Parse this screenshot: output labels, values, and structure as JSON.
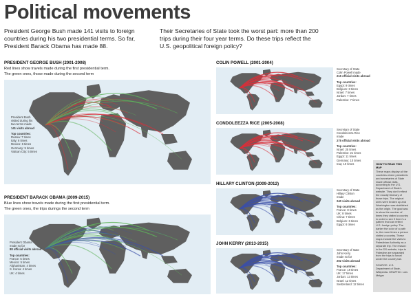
{
  "title": "Political movements",
  "intro_left": "President George Bush made 141 visits to foreign countries during his two presidential terms. So far, President Barack Obama has made 88.",
  "intro_right": "Their Secretaries of State took the worst part: more than 200 trips during their four year terms. Do these trips reflect the U.S. geopolitical foreign policy?",
  "bush": {
    "heading": "PRESIDENT GEORGE BUSH (2001-2008)",
    "desc1": "Red lines show travels made during the first presidential term.",
    "desc2": "The green ones, those made during the second term",
    "note_lines": [
      "President Bush",
      "visited during his",
      "two terms made"
    ],
    "note_bold": "141 visits abroad",
    "top_label": "Top countries:",
    "top": [
      "Russia: 7 times",
      "Italy: 6 times",
      "Mexico: 6 times",
      "Germany: 5 times",
      "Vatican City: 5 times"
    ]
  },
  "obama": {
    "heading": "PRESIDENT BARACK OBAMA (2009-2015)",
    "desc1": "Blue lines show travels made during the first presidential term.",
    "desc2": "The green ones, the trips durings the second term",
    "note_lines": [
      "President Obama",
      "made so far"
    ],
    "note_bold": "88 official visits abroad",
    "top_label": "Top countries:",
    "top": [
      "France: 5 times",
      "Mexico: 5 times",
      "Afghanistan: 4 times",
      "S. Korea: 4 times",
      "UK: 4 times"
    ]
  },
  "powell": {
    "heading": "COLIN POWELL (2001-2004)",
    "note_lines": [
      "Secretary of State",
      "Colin Powell made"
    ],
    "note_bold": "215 official visits abroad",
    "top_label": "Top countries:",
    "top": [
      "Egypt: 9 times",
      "Belgium: 8 times",
      "Israel: 7 times",
      "Jordan: 7 times",
      "Palestine: 7 times"
    ]
  },
  "rice": {
    "heading": "CONDOLEEZZA RICE (2005-2008)",
    "note_lines": [
      "Secretary of State",
      "Condoleezza Rice",
      "made"
    ],
    "note_bold": "275 official visits abroad",
    "top_label": "Top countries:",
    "top": [
      "Israel: 25 times",
      "Palestine: 21 times",
      "Egypt: 11 times",
      "Germany: 10 times",
      "Iraq: 10 times"
    ]
  },
  "clinton": {
    "heading": "HILLARY CLINTON (2009-2012)",
    "note_lines": [
      "Secretary of State",
      "Hillary Clinton",
      "made"
    ],
    "note_bold": "240 visits abroad",
    "top_label": "Top countries:",
    "top": [
      "France: 8 times",
      "UK: 8 times",
      "China: 7 times",
      "Belgium: 6 times",
      "Egypt: 6 times"
    ]
  },
  "kerry": {
    "heading": "JOHN KERRY (2013-2015)",
    "note_lines": [
      "Secretary of state",
      "John Kerry",
      "made so far"
    ],
    "note_bold": "202 visits abroad",
    "top_label": "Top countries:",
    "top": [
      "France: 19 times",
      "UK: 17 times",
      "Jordan: 13 times",
      "Israel: 12 times",
      "Switzerland: 12 times"
    ]
  },
  "howto": {
    "heading": "HOW TO READ THIS MAP",
    "body": "These maps display all the countries where presidents and secretaries of State made official visits, according to the U.S. Department of State's website. They don't reflect the exactly itinerary of those trips. The original ones were broken up and Washington was stablished as the origin. The goal was to show the number of times they visited a country in order to see if there's a pattern that can reflect U.S. foreign policy. The darker the color of a path is, the more times a person visited a country. These maps include the visits to Palestinian Authority as a separate trip. The reason: in the DS website, trips to Palestine are separated from the trips to Israel under the country tab.",
    "source": "SOURCE: U.S. Department of State, Wikipedia. GRAPHIC: Luis Melgar"
  },
  "colors": {
    "red": "#d9303a",
    "green": "#5fb35a",
    "blue": "#3b4fa8",
    "ocean": "#e2edf4",
    "land": "#5f5f5f"
  }
}
